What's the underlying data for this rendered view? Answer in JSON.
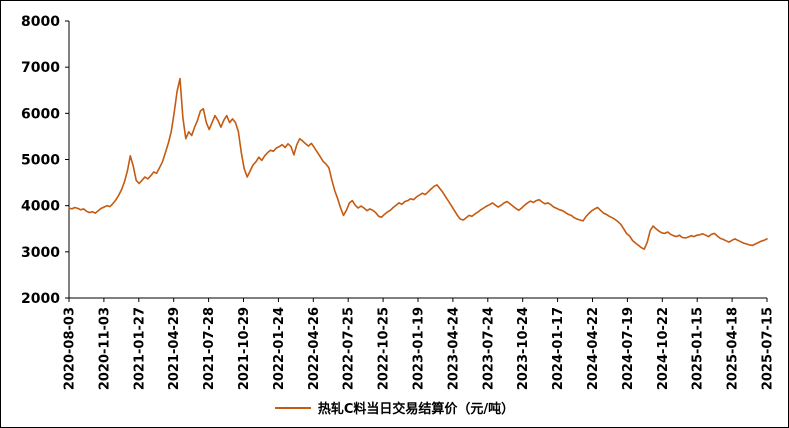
{
  "legend": {
    "label": "热轧C料当日交易结算价（元/吨）"
  },
  "chart_data": {
    "type": "line",
    "title": "",
    "series_name": "热轧C料当日交易结算价（元/吨）",
    "line_color": "#C55A11",
    "ylim": [
      2000,
      8000
    ],
    "ytick_step": 1000,
    "grid": false,
    "legend_position": "bottom",
    "categories": [
      "2020-08-03",
      "2020-11-03",
      "2021-01-27",
      "2021-04-29",
      "2021-07-28",
      "2021-10-29",
      "2022-01-24",
      "2022-04-26",
      "2022-07-25",
      "2022-10-25",
      "2023-01-19",
      "2023-04-24",
      "2023-07-24",
      "2023-10-24",
      "2024-01-17",
      "2024-04-22",
      "2024-07-19",
      "2024-10-22",
      "2025-01-15",
      "2025-04-18",
      "2025-07-15"
    ],
    "values": [
      3950,
      3930,
      3960,
      3940,
      3910,
      3930,
      3880,
      3850,
      3870,
      3840,
      3890,
      3940,
      3970,
      4000,
      3980,
      4040,
      4120,
      4220,
      4350,
      4520,
      4750,
      5080,
      4850,
      4550,
      4480,
      4550,
      4620,
      4580,
      4650,
      4730,
      4700,
      4820,
      4950,
      5150,
      5350,
      5600,
      6000,
      6480,
      6750,
      5900,
      5450,
      5600,
      5520,
      5700,
      5850,
      6050,
      6100,
      5800,
      5650,
      5800,
      5950,
      5850,
      5700,
      5850,
      5950,
      5800,
      5880,
      5800,
      5600,
      5150,
      4800,
      4620,
      4750,
      4880,
      4950,
      5050,
      4980,
      5080,
      5150,
      5200,
      5180,
      5250,
      5280,
      5320,
      5260,
      5340,
      5280,
      5100,
      5320,
      5450,
      5400,
      5340,
      5290,
      5350,
      5260,
      5160,
      5060,
      4960,
      4900,
      4820,
      4560,
      4320,
      4150,
      3950,
      3790,
      3900,
      4060,
      4110,
      4010,
      3950,
      3990,
      3950,
      3890,
      3930,
      3900,
      3850,
      3770,
      3750,
      3810,
      3860,
      3900,
      3960,
      4010,
      4060,
      4030,
      4090,
      4110,
      4150,
      4130,
      4190,
      4230,
      4270,
      4240,
      4300,
      4360,
      4420,
      4450,
      4370,
      4290,
      4190,
      4090,
      3990,
      3890,
      3790,
      3710,
      3690,
      3740,
      3790,
      3770,
      3820,
      3860,
      3910,
      3950,
      3990,
      4020,
      4060,
      4010,
      3970,
      4010,
      4060,
      4090,
      4040,
      3990,
      3940,
      3900,
      3950,
      4010,
      4060,
      4100,
      4070,
      4110,
      4130,
      4080,
      4040,
      4060,
      4020,
      3970,
      3940,
      3910,
      3890,
      3850,
      3810,
      3790,
      3740,
      3710,
      3690,
      3670,
      3760,
      3830,
      3890,
      3930,
      3960,
      3900,
      3840,
      3810,
      3770,
      3740,
      3700,
      3650,
      3590,
      3490,
      3390,
      3340,
      3240,
      3190,
      3140,
      3090,
      3060,
      3210,
      3460,
      3560,
      3500,
      3450,
      3410,
      3400,
      3430,
      3380,
      3350,
      3330,
      3360,
      3310,
      3300,
      3320,
      3350,
      3330,
      3360,
      3370,
      3390,
      3360,
      3330,
      3380,
      3400,
      3340,
      3290,
      3270,
      3240,
      3210,
      3250,
      3280,
      3250,
      3220,
      3190,
      3170,
      3150,
      3140,
      3170,
      3200,
      3230,
      3250,
      3280
    ]
  }
}
